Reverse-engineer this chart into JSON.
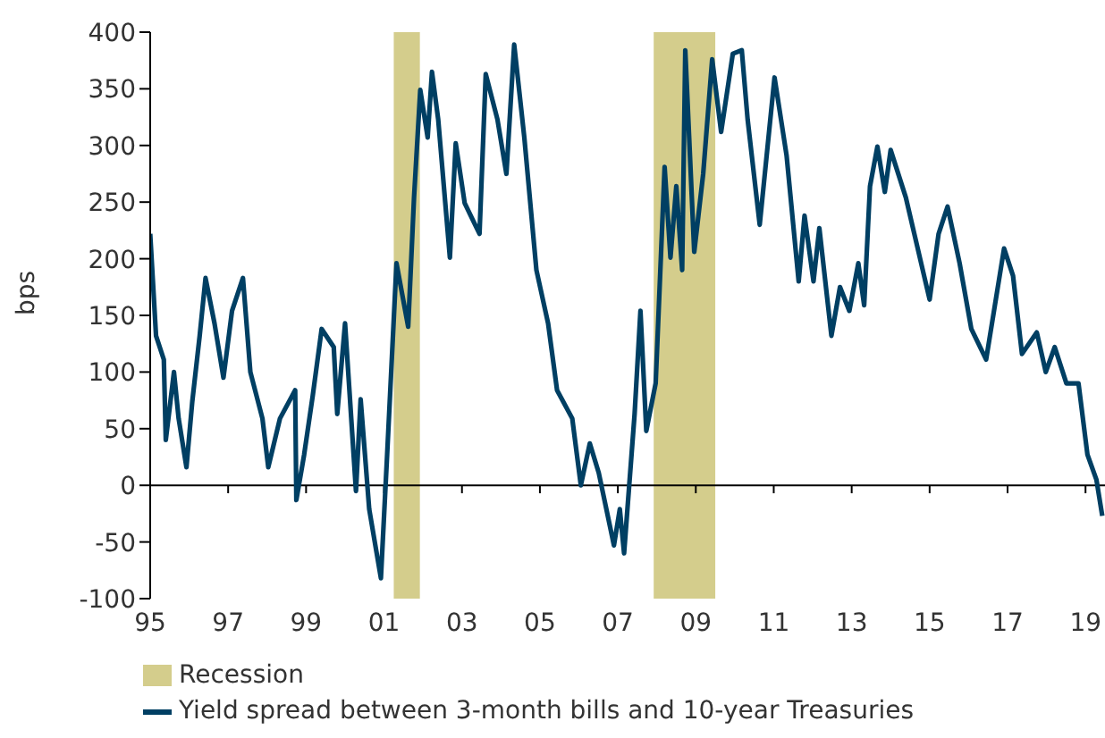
{
  "chart_data": {
    "type": "line",
    "ylabel": "bps",
    "x": [
      1995,
      1995.15,
      1995.35,
      1995.4,
      1995.61,
      1995.73,
      1995.93,
      1996.08,
      1996.27,
      1996.42,
      1996.65,
      1996.88,
      1997.1,
      1997.38,
      1997.57,
      1997.88,
      1998.03,
      1998.33,
      1998.72,
      1998.75,
      1998.95,
      1999.17,
      1999.4,
      1999.71,
      1999.8,
      2000.0,
      2000.28,
      2000.4,
      2000.62,
      2000.92,
      2001.08,
      2001.32,
      2001.62,
      2001.77,
      2001.93,
      2002.12,
      2002.23,
      2002.39,
      2002.69,
      2002.84,
      2003.07,
      2003.45,
      2003.61,
      2003.91,
      2004.14,
      2004.34,
      2004.6,
      2004.91,
      2005.21,
      2005.44,
      2005.83,
      2006.05,
      2006.28,
      2006.51,
      2006.9,
      2007.05,
      2007.16,
      2007.43,
      2007.58,
      2007.73,
      2007.97,
      2008.2,
      2008.35,
      2008.5,
      2008.65,
      2008.73,
      2008.96,
      2009.19,
      2009.42,
      2009.65,
      2009.95,
      2010.18,
      2010.33,
      2010.64,
      2011.02,
      2011.33,
      2011.64,
      2011.79,
      2012.02,
      2012.17,
      2012.48,
      2012.7,
      2012.94,
      2013.17,
      2013.32,
      2013.47,
      2013.66,
      2013.85,
      2014.0,
      2014.39,
      2015.0,
      2015.23,
      2015.46,
      2015.77,
      2016.07,
      2016.45,
      2016.91,
      2017.14,
      2017.37,
      2017.75,
      2017.98,
      2018.21,
      2018.51,
      2018.82,
      2019.05,
      2019.28,
      2019.43
    ],
    "series": [
      {
        "name": "Yield spread between 3-month bills and 10-year Treasuries",
        "color": "#003f63",
        "values": [
          222,
          132,
          111,
          40,
          100,
          59,
          16,
          74,
          132,
          183,
          143,
          95,
          154,
          183,
          100,
          59,
          16,
          59,
          84,
          -13,
          27,
          79,
          138,
          122,
          63,
          143,
          -5,
          76,
          -21,
          -82,
          27,
          196,
          140,
          254,
          349,
          307,
          365,
          323,
          201,
          302,
          249,
          222,
          363,
          323,
          275,
          389,
          307,
          190,
          143,
          84,
          59,
          0,
          37,
          11,
          -53,
          -21,
          -60,
          63,
          154,
          48,
          90,
          281,
          201,
          264,
          190,
          384,
          206,
          275,
          376,
          312,
          381,
          384,
          323,
          230,
          360,
          291,
          180,
          238,
          180,
          227,
          132,
          175,
          154,
          196,
          159,
          264,
          299,
          259,
          296,
          254,
          164,
          222,
          246,
          196,
          138,
          111,
          209,
          185,
          116,
          135,
          100,
          122,
          90,
          90,
          27,
          5,
          -27
        ]
      }
    ],
    "xlim": [
      1995,
      2019.5
    ],
    "xticks": [
      {
        "value": 1995,
        "label": "95"
      },
      {
        "value": 1997,
        "label": "97"
      },
      {
        "value": 1999,
        "label": "99"
      },
      {
        "value": 2001,
        "label": "01"
      },
      {
        "value": 2003,
        "label": "03"
      },
      {
        "value": 2005,
        "label": "05"
      },
      {
        "value": 2007,
        "label": "07"
      },
      {
        "value": 2009,
        "label": "09"
      },
      {
        "value": 2011,
        "label": "11"
      },
      {
        "value": 2013,
        "label": "13"
      },
      {
        "value": 2015,
        "label": "15"
      },
      {
        "value": 2017,
        "label": "17"
      },
      {
        "value": 2019,
        "label": "19"
      }
    ],
    "ylim": [
      -100,
      400
    ],
    "yticks": [
      -100,
      -50,
      0,
      50,
      100,
      150,
      200,
      250,
      300,
      350,
      400
    ],
    "bands": [
      {
        "axis": "x",
        "from": 2001.25,
        "to": 2001.92,
        "label": "Recession",
        "color": "#d4cd8c"
      },
      {
        "axis": "x",
        "from": 2007.92,
        "to": 2009.5,
        "color": "#d4cd8c"
      }
    ],
    "ref_lines": [
      {
        "axis": "y",
        "value": 0,
        "color": "#000000"
      }
    ],
    "marker": "none",
    "line_style": "solid",
    "grid": false,
    "legend": "bottom"
  }
}
